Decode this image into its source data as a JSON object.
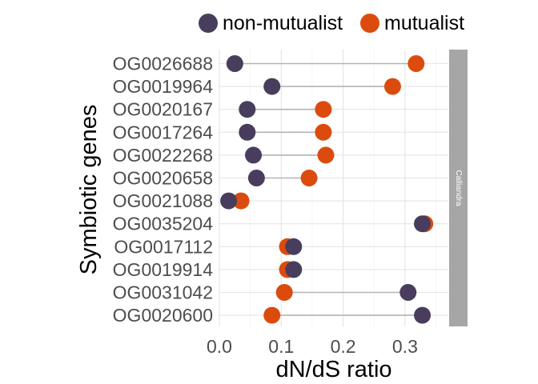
{
  "chart_data": {
    "type": "dumbbell",
    "title": "",
    "xlabel": "dN/dS ratio",
    "ylabel": "Symbiotic genes",
    "xlim": [
      0,
      0.37
    ],
    "x_ticks": [
      0.0,
      0.1,
      0.2,
      0.3
    ],
    "x_tick_labels": [
      "0.0",
      "0.1",
      "0.2",
      "0.3"
    ],
    "facet_label": "Calliandra",
    "legend_position": "top",
    "grid": true,
    "categories": [
      "OG0026688",
      "OG0019964",
      "OG0020167",
      "OG0017264",
      "OG0022268",
      "OG0020658",
      "OG0021088",
      "OG0035204",
      "OG0017112",
      "OG0019914",
      "OG0031042",
      "OG0020600"
    ],
    "series": [
      {
        "name": "non-mutualist",
        "color": "#483D5C",
        "values": [
          0.025,
          0.085,
          0.045,
          0.045,
          0.055,
          0.06,
          0.015,
          0.328,
          0.12,
          0.12,
          0.305,
          0.328
        ]
      },
      {
        "name": "mutualist",
        "color": "#DC4B0E",
        "values": [
          0.318,
          0.28,
          0.168,
          0.168,
          0.172,
          0.145,
          0.035,
          0.332,
          0.11,
          0.11,
          0.105,
          0.085
        ]
      }
    ]
  }
}
